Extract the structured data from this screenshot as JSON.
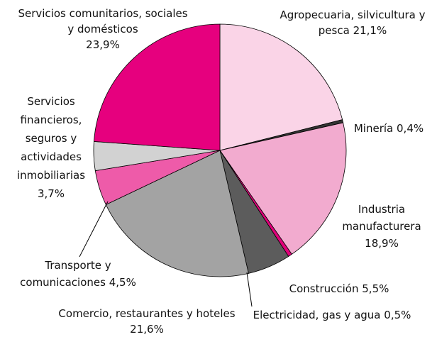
{
  "chart_data": {
    "type": "pie",
    "categories": [
      "Agropecuaria, silvicultura y pesca",
      "Minería",
      "Industria manufacturera",
      "Electricidad, gas y agua",
      "Construcción",
      "Comercio, restaurantes y hoteles",
      "Transporte y comunicaciones",
      "Servicios financieros, seguros y actividades inmobiliarias",
      "Servicios comunitarios, sociales y domésticos"
    ],
    "values": [
      21.1,
      0.4,
      18.9,
      0.5,
      5.5,
      21.6,
      4.5,
      3.7,
      23.9
    ],
    "value_labels": [
      "21,1%",
      "0,4%",
      "18,9%",
      "0,5%",
      "5,5%",
      "21,6%",
      "4,5%",
      "3,7%",
      "23,9%"
    ],
    "colors": [
      "#fad4e7",
      "#333333",
      "#f2abcf",
      "#e0007a",
      "#5c5c5c",
      "#a3a3a3",
      "#ee5ba9",
      "#d2d2d2",
      "#e6007e"
    ]
  }
}
